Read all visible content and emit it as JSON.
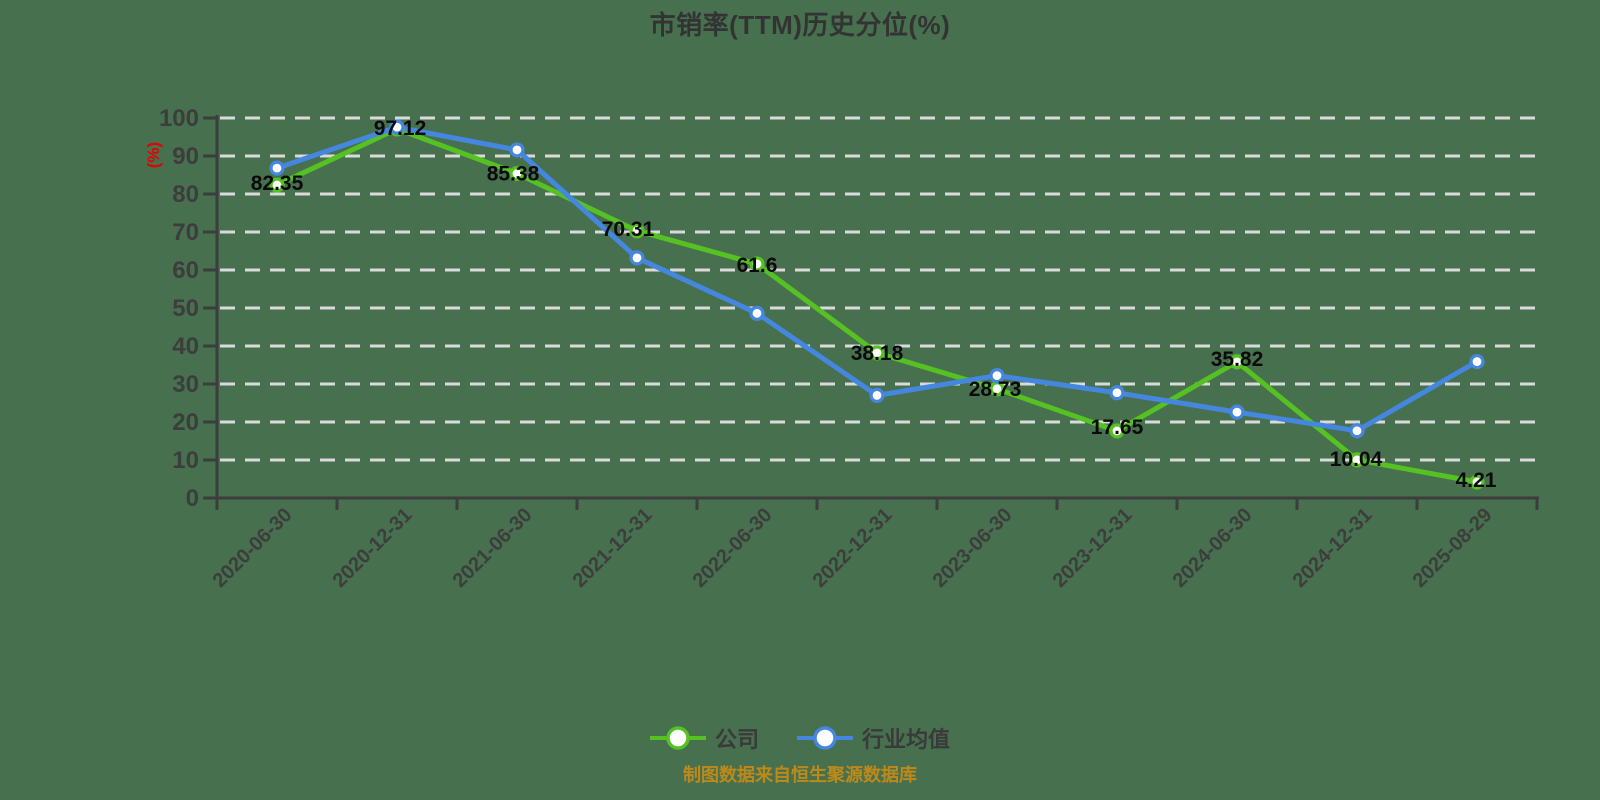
{
  "title": "市销率(TTM)历史分位(%)",
  "y_axis_unit": "(%)",
  "footer": "制图数据来自恒生聚源数据库",
  "colors": {
    "background": "#47704f",
    "company_green": "#55c122",
    "industry_blue": "#4587de",
    "axis_gray": "#3d3d3d",
    "grid_dash": "#dadada",
    "unit_red": "#e60000",
    "footer_gold": "#bd8a1a",
    "data_label_black": "#0a0a0a"
  },
  "legend": {
    "items": [
      {
        "label": "公司"
      },
      {
        "label": "行业均值"
      }
    ]
  },
  "chart_data": {
    "type": "line",
    "title": "市销率(TTM)历史分位(%)",
    "categories": [
      "2020-06-30",
      "2020-12-31",
      "2021-06-30",
      "2021-12-31",
      "2022-06-30",
      "2022-12-31",
      "2023-06-30",
      "2023-12-31",
      "2024-06-30",
      "2024-12-31",
      "2025-08-29"
    ],
    "series": [
      {
        "name": "公司",
        "color": "#55c122",
        "values": [
          82.35,
          97.12,
          85.38,
          70.31,
          61.6,
          38.18,
          28.73,
          17.65,
          35.82,
          10.04,
          4.21
        ],
        "data_labels": [
          "82.35",
          "97.12",
          "85.38",
          "70.31",
          "61.6",
          "38.18",
          "28.73",
          "17.65",
          "35.82",
          "10.04",
          "4.21"
        ]
      },
      {
        "name": "行业均值",
        "color": "#4587de",
        "values": [
          86.8,
          97.6,
          91.6,
          63.2,
          48.6,
          27.0,
          32.2,
          27.7,
          22.6,
          17.7,
          35.9
        ],
        "values_estimated": true
      }
    ],
    "ylabel": "(%)",
    "ylim": [
      0,
      100
    ],
    "y_ticks": [
      0,
      10,
      20,
      30,
      40,
      50,
      60,
      70,
      80,
      90,
      100
    ],
    "grid": "horizontal-dashed",
    "legend_position": "bottom"
  }
}
